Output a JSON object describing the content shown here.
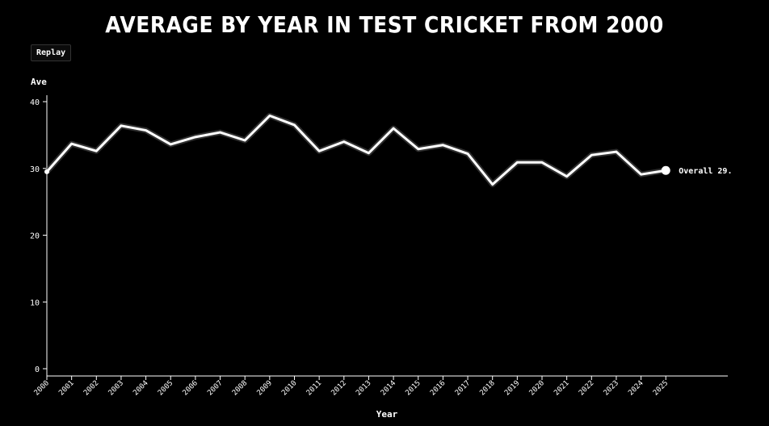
{
  "title": "AVERAGE BY YEAR IN TEST CRICKET FROM 2000",
  "controls": {
    "replay_label": "Replay"
  },
  "colors": {
    "background": "#000000",
    "line": "#ffffff",
    "text": "#ffffff"
  },
  "chart_data": {
    "type": "line",
    "xlabel": "Year",
    "ylabel": "Ave",
    "ylim": [
      0,
      40
    ],
    "yticks": [
      0,
      10,
      20,
      30,
      40
    ],
    "grid": false,
    "x": [
      "2000",
      "2001",
      "2002",
      "2003",
      "2004",
      "2005",
      "2006",
      "2007",
      "2008",
      "2009",
      "2010",
      "2011",
      "2012",
      "2013",
      "2014",
      "2015",
      "2016",
      "2017",
      "2018",
      "2019",
      "2020",
      "2021",
      "2022",
      "2023",
      "2024",
      "2025"
    ],
    "series": [
      {
        "values": [
          29.5,
          33.7,
          32.6,
          36.4,
          35.7,
          33.6,
          34.7,
          35.4,
          34.2,
          37.9,
          36.5,
          32.6,
          34.0,
          32.3,
          36.0,
          32.9,
          33.5,
          32.2,
          27.6,
          30.9,
          30.9,
          28.8,
          32.0,
          32.5,
          29.1,
          29.7
        ]
      }
    ],
    "annotation": {
      "label": "Overall 29."
    }
  }
}
